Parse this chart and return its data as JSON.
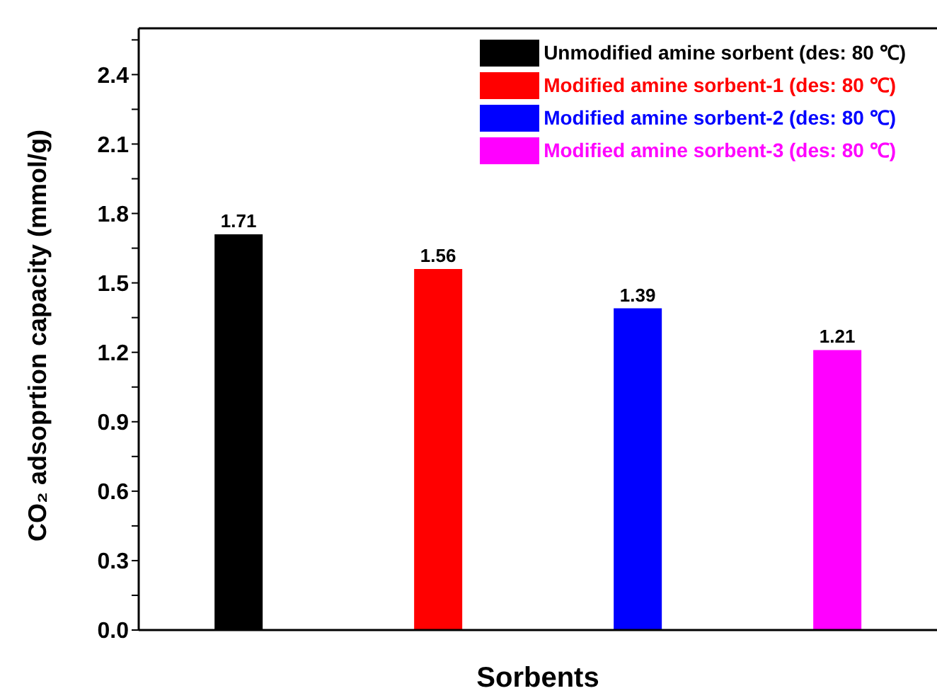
{
  "chart_data": {
    "type": "bar",
    "xlabel": "Sorbents",
    "ylabel": "CO₂ adsoprtion capacity (mmol/g)",
    "categories": [
      null,
      null,
      null,
      null
    ],
    "stacked": true,
    "series": [
      {
        "name": "Unmodified amine sorbent (des: 80 ℃)",
        "color": "#000000",
        "values": [
          1.71,
          null,
          null,
          null
        ]
      },
      {
        "name": "Modified amine sorbent-1 (des: 80 ℃)",
        "color": "#ff0000",
        "values": [
          null,
          1.56,
          null,
          null
        ]
      },
      {
        "name": "Modified amine sorbent-2 (des: 80 ℃)",
        "color": "#0000ff",
        "values": [
          null,
          null,
          1.39,
          null
        ]
      },
      {
        "name": "Modified amine sorbent-3 (des: 80 ℃)",
        "color": "#ff00ff",
        "values": [
          null,
          null,
          null,
          1.21
        ]
      }
    ],
    "ylim": [
      0,
      2.6
    ],
    "yticks": [
      {
        "value": 0,
        "label": "0.0"
      },
      {
        "value": 0.15,
        "label": null
      },
      0.3,
      {
        "value": 0.45,
        "label": null
      },
      0.6,
      {
        "value": 0.75,
        "label": null
      },
      0.9,
      {
        "value": 1.05,
        "label": null
      },
      1.2,
      {
        "value": 1.35,
        "label": null
      },
      1.5,
      {
        "value": 1.65,
        "label": null
      },
      1.8,
      {
        "value": 1.95,
        "label": null
      },
      2.1,
      {
        "value": 2.25,
        "label": null
      },
      2.4,
      {
        "value": 2.55,
        "label": null
      }
    ],
    "data_labels": true,
    "legend": "top right",
    "grid": false
  }
}
